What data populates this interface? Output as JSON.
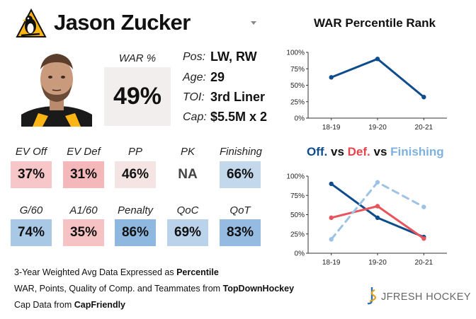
{
  "player": {
    "name": "Jason Zucker",
    "team_logo_icon": "penguins-logo-icon",
    "war_label": "WAR %",
    "war_value": "49%",
    "bio": [
      {
        "key": "Pos:",
        "value": "LW, RW"
      },
      {
        "key": "Age:",
        "value": "29"
      },
      {
        "key": "TOI:",
        "value": "3rd Liner"
      },
      {
        "key": "Cap:",
        "value": "$5.5M x 2"
      }
    ]
  },
  "stats_row1": [
    {
      "label": "EV Off",
      "value": "37%",
      "color": "#f7c6c8"
    },
    {
      "label": "EV Def",
      "value": "31%",
      "color": "#f5b8ba"
    },
    {
      "label": "PP",
      "value": "46%",
      "color": "#f4e4e4"
    },
    {
      "label": "PK",
      "value": "NA",
      "color": "#ffffff"
    },
    {
      "label": "Finishing",
      "value": "66%",
      "color": "#c4d8ec"
    }
  ],
  "stats_row2": [
    {
      "label": "G/60",
      "value": "74%",
      "color": "#a9c8e6"
    },
    {
      "label": "A1/60",
      "value": "35%",
      "color": "#f6c2c4"
    },
    {
      "label": "Penalty",
      "value": "86%",
      "color": "#8fb8e0"
    },
    {
      "label": "QoC",
      "value": "69%",
      "color": "#bad2ea"
    },
    {
      "label": "QoT",
      "value": "83%",
      "color": "#95bbe2"
    }
  ],
  "footer": {
    "line1_prefix": "3-Year Weighted Avg Data Expressed as ",
    "line1_bold": "Percentile",
    "line2_prefix": "WAR, Points, Quality of Comp. and Teammates from ",
    "line2_bold": "TopDownHockey",
    "line3_prefix": "Cap Data from ",
    "line3_bold": "CapFriendly",
    "brand": "JFRESH HOCKEY"
  },
  "chart_data": [
    {
      "type": "line",
      "title": "WAR Percentile Rank",
      "x": [
        "18-19",
        "19-20",
        "20-21"
      ],
      "ylim": [
        0,
        100
      ],
      "yticks": [
        "0%",
        "25%",
        "50%",
        "75%",
        "100%"
      ],
      "series": [
        {
          "values": [
            62,
            90,
            32
          ],
          "color": "#0f4c8c",
          "dashed": false
        }
      ]
    },
    {
      "type": "line",
      "title_parts": [
        {
          "text": "Off.",
          "color": "#0f4c8c"
        },
        {
          "text": " vs ",
          "color": "#111111"
        },
        {
          "text": "Def.",
          "color": "#e8424c"
        },
        {
          "text": " vs ",
          "color": "#111111"
        },
        {
          "text": "Finishing",
          "color": "#7fb1de"
        }
      ],
      "x": [
        "18-19",
        "19-20",
        "20-21"
      ],
      "ylim": [
        0,
        100
      ],
      "yticks": [
        "0%",
        "25%",
        "50%",
        "75%",
        "100%"
      ],
      "series": [
        {
          "name": "Off.",
          "values": [
            90,
            46,
            21
          ],
          "color": "#0f4c8c",
          "dashed": false
        },
        {
          "name": "Def.",
          "values": [
            46,
            61,
            19
          ],
          "color": "#e8545c",
          "dashed": false
        },
        {
          "name": "Finishing",
          "values": [
            18,
            92,
            60
          ],
          "color": "#9cc2e4",
          "dashed": true
        }
      ]
    }
  ]
}
